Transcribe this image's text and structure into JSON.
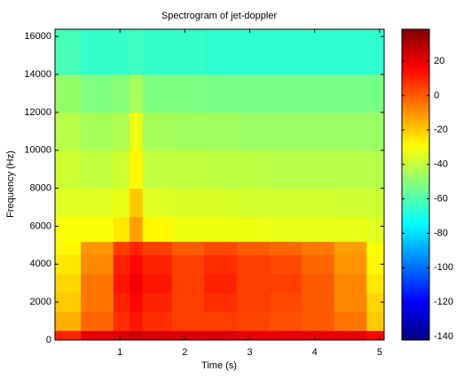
{
  "chart_data": {
    "type": "heatmap",
    "title": "Spectrogram of jet-doppler",
    "xlabel": "Time (s)",
    "ylabel": "Frequency (Hz)",
    "xlim": [
      0,
      5.07
    ],
    "ylim": [
      0,
      16384
    ],
    "clim": [
      -142,
      38.5
    ],
    "xticks": [
      1,
      2,
      3,
      4,
      5
    ],
    "yticks": [
      0,
      2000,
      4000,
      6000,
      8000,
      10000,
      12000,
      14000,
      16000
    ],
    "cticks": [
      20,
      0,
      -20,
      -40,
      -60,
      -80,
      -100,
      -120,
      -140
    ],
    "colormap": "jet",
    "x_bins": [
      0,
      0.4,
      0.9,
      1.15,
      1.35,
      1.8,
      2.3,
      2.8,
      3.3,
      3.8,
      4.3,
      4.8,
      5.07
    ],
    "y_bins": [
      0,
      500,
      1500,
      2500,
      3500,
      4500,
      5200,
      6500,
      8000,
      10000,
      12000,
      14000,
      16384
    ],
    "z": [
      [
        10,
        20,
        22,
        25,
        22,
        22,
        22,
        20,
        20,
        20,
        20,
        15
      ],
      [
        -15,
        -2,
        8,
        12,
        8,
        5,
        5,
        4,
        2,
        0,
        -5,
        -20
      ],
      [
        -20,
        -5,
        10,
        15,
        10,
        5,
        8,
        5,
        3,
        0,
        -8,
        -22
      ],
      [
        -22,
        -5,
        12,
        18,
        12,
        5,
        10,
        5,
        5,
        0,
        -8,
        -25
      ],
      [
        -25,
        -8,
        10,
        15,
        10,
        5,
        8,
        5,
        3,
        -2,
        -10,
        -28
      ],
      [
        -28,
        -10,
        5,
        10,
        5,
        0,
        3,
        0,
        -2,
        -5,
        -12,
        -30
      ],
      [
        -30,
        -30,
        -25,
        -12,
        -28,
        -32,
        -32,
        -32,
        -33,
        -33,
        -33,
        -35
      ],
      [
        -35,
        -35,
        -33,
        -20,
        -35,
        -36,
        -36,
        -37,
        -37,
        -37,
        -38,
        -38
      ],
      [
        -38,
        -40,
        -38,
        -28,
        -40,
        -40,
        -41,
        -41,
        -42,
        -42,
        -42,
        -42
      ],
      [
        -42,
        -45,
        -43,
        -32,
        -45,
        -46,
        -46,
        -47,
        -47,
        -47,
        -47,
        -47
      ],
      [
        -48,
        -52,
        -50,
        -45,
        -52,
        -52,
        -53,
        -53,
        -53,
        -53,
        -53,
        -53
      ],
      [
        -62,
        -65,
        -65,
        -63,
        -65,
        -65,
        -66,
        -66,
        -66,
        -66,
        -66,
        -66
      ]
    ]
  }
}
